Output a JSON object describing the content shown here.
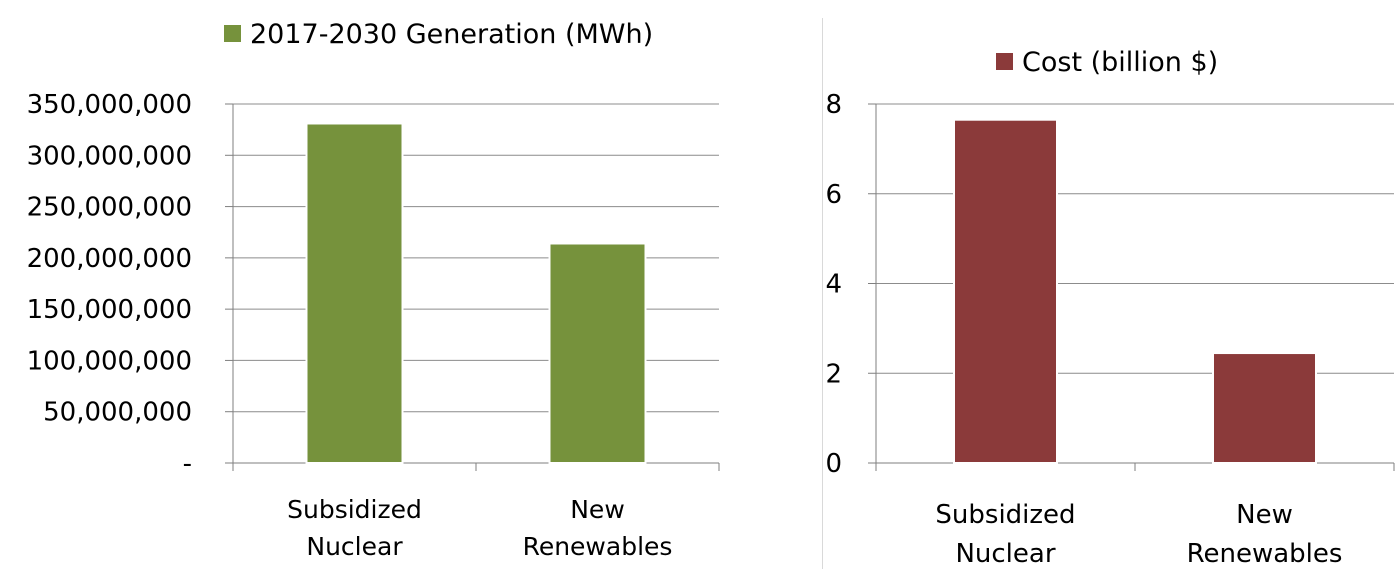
{
  "chart_data": [
    {
      "type": "bar",
      "categories": [
        [
          "Subsidized",
          "Nuclear"
        ],
        [
          "New",
          "Renewables"
        ]
      ],
      "series": [
        {
          "name": "2017-2030 Generation (MWh)",
          "values": [
            331000000,
            214000000
          ]
        }
      ],
      "ylim": [
        0,
        350000000
      ],
      "yticks": [
        "-",
        "50,000,000",
        "100,000,000",
        "150,000,000",
        "200,000,000",
        "250,000,000",
        "300,000,000",
        "350,000,000"
      ],
      "ytick_values": [
        0,
        50000000,
        100000000,
        150000000,
        200000000,
        250000000,
        300000000,
        350000000
      ],
      "grid": true,
      "legend": "top",
      "color": "#76923c"
    },
    {
      "type": "bar",
      "categories": [
        [
          "Subsidized",
          "Nuclear"
        ],
        [
          "New",
          "Renewables"
        ]
      ],
      "series": [
        {
          "name": "Cost (billion $)",
          "values": [
            7.65,
            2.45
          ]
        }
      ],
      "ylim": [
        0,
        8
      ],
      "yticks": [
        "0",
        "2",
        "4",
        "6",
        "8"
      ],
      "ytick_values": [
        0,
        2,
        4,
        6,
        8
      ],
      "grid": true,
      "legend": "top",
      "color": "#8b3a3a"
    }
  ]
}
